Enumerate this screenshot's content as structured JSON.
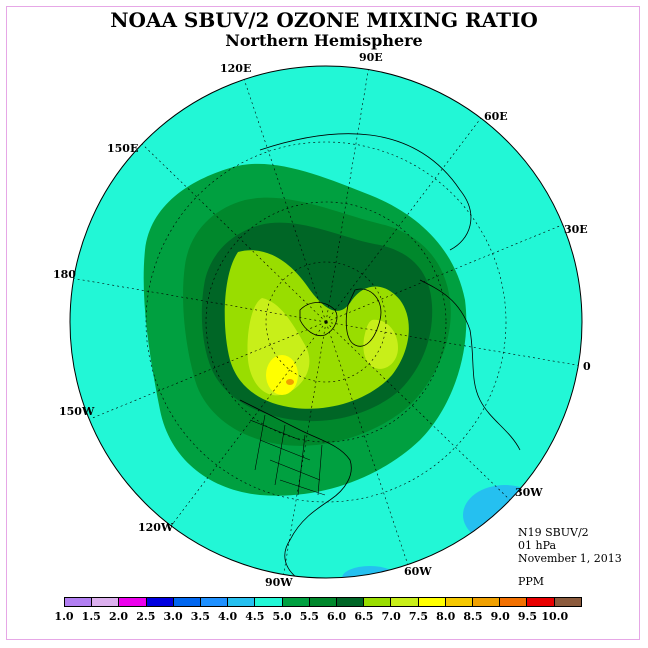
{
  "title": "NOAA SBUV/2 OZONE MIXING RATIO",
  "subtitle": "Northern Hemisphere",
  "info": {
    "instrument": "N19 SBUV/2",
    "level": "01 hPa",
    "date": "November 1, 2013",
    "units": "PPM"
  },
  "longitude_labels": [
    {
      "name": "lon-120e",
      "text": "120E"
    },
    {
      "name": "lon-90e",
      "text": "90E"
    },
    {
      "name": "lon-60e",
      "text": "60E"
    },
    {
      "name": "lon-150e",
      "text": "150E"
    },
    {
      "name": "lon-30e",
      "text": "30E"
    },
    {
      "name": "lon-180",
      "text": "180"
    },
    {
      "name": "lon-0",
      "text": "0"
    },
    {
      "name": "lon-150w",
      "text": "150W"
    },
    {
      "name": "lon-30w",
      "text": "30W"
    },
    {
      "name": "lon-120w",
      "text": "120W"
    },
    {
      "name": "lon-60w",
      "text": "60W"
    },
    {
      "name": "lon-90w",
      "text": "90W"
    }
  ],
  "legend": {
    "colors": [
      "#b27ff2",
      "#dcb0ee",
      "#ec00ec",
      "#0000e0",
      "#0066f0",
      "#1e90ff",
      "#25c0f0",
      "#22f7d6",
      "#00a040",
      "#00882c",
      "#006626",
      "#99dd00",
      "#c8ef19",
      "#ffff00",
      "#f5c800",
      "#f0a000",
      "#f27000",
      "#e80000",
      "#8b5a3c"
    ],
    "ticks": [
      "1.0",
      "1.5",
      "2.0",
      "2.5",
      "3.0",
      "3.5",
      "4.0",
      "4.5",
      "5.0",
      "5.5",
      "6.0",
      "6.5",
      "7.0",
      "7.5",
      "8.0",
      "8.5",
      "9.0",
      "9.5",
      "10.0"
    ]
  },
  "field_colors": {
    "background_level": "#22f7d6",
    "level_5_0": "#00a040",
    "level_5_5": "#00882c",
    "level_6_0": "#006626",
    "level_6_5": "#99dd00",
    "level_7_0": "#c8ef19",
    "level_7_5": "#ffff00",
    "max_spot": "#f0a000",
    "low_spot": "#25c0f0"
  }
}
